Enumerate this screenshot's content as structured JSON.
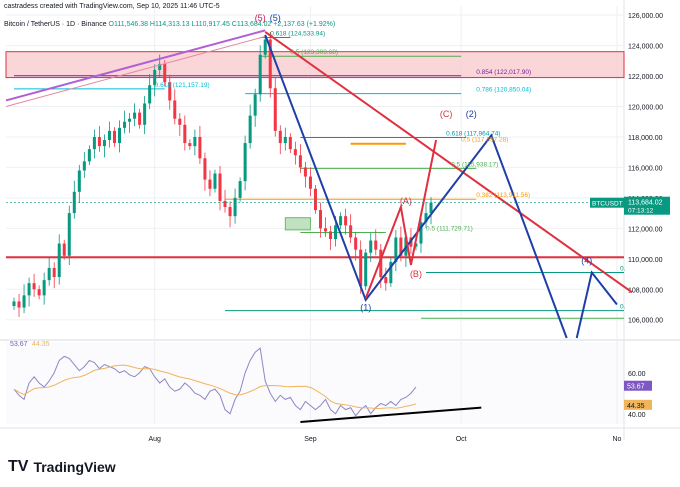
{
  "header": {
    "credit": "castradess created with TradingView.com, Sep 10, 2025 11:46 UTC-5",
    "symbol": "Bitcoin / TetherUS · 1D · Binance",
    "ohlc": "O111,546.38 H114,313.13 L110,917.45 C113,684.02 +2,137.63 (+1.92%)"
  },
  "brand": {
    "logo": "TV",
    "name": "TradingView"
  },
  "colors": {
    "up": "#089981",
    "down": "#f23645",
    "grid": "#eef0f3",
    "fib_purple": "#7b1fa2",
    "fib_teal": "#00bcd4",
    "fib_orange": "#ff9800",
    "fib_green": "#4caf50",
    "wave_blue": "#1e3fa8",
    "trend_red": "#e0303f",
    "zone_pink": "#f8c8cc",
    "wedge_violet": "#b15fd6",
    "rsi": "#8e86c6",
    "rsi_ma": "#f0b45a"
  },
  "chart_data": {
    "type": "candlestick",
    "timeframe": "1D",
    "ylim": [
      104800,
      126600
    ],
    "ticks": [
      "126,000.00",
      "124,000.00",
      "122,000.00",
      "120,000.00",
      "118,000.00",
      "116,000.00",
      "114,000.00",
      "112,000.00",
      "110,000.00",
      "108,000.00",
      "106,000.00"
    ],
    "x_labels": [
      {
        "label": "Aug",
        "day": 28
      },
      {
        "label": "Sep",
        "day": 59
      },
      {
        "label": "Oct",
        "day": 89
      },
      {
        "label": "No",
        "day": 120
      }
    ],
    "current_price": {
      "label": "BTCUSDT",
      "value": "113,684.02",
      "countdown": "07:13:12",
      "y": 113684
    },
    "closes": [
      107200,
      106800,
      107600,
      108400,
      108000,
      107600,
      108600,
      109400,
      108800,
      111000,
      110200,
      113000,
      114400,
      115800,
      116400,
      117200,
      118000,
      117400,
      117800,
      118400,
      117600,
      118600,
      119000,
      119200,
      119600,
      118800,
      120200,
      121400,
      122400,
      122800,
      121600,
      120400,
      119200,
      118800,
      117600,
      117400,
      118000,
      116600,
      115200,
      114600,
      115600,
      113800,
      113400,
      112800,
      114000,
      115100,
      117600,
      119400,
      120800,
      123400,
      124400,
      121200,
      118400,
      117600,
      118000,
      117200,
      116800,
      116000,
      115400,
      114600,
      113200,
      112000,
      111800,
      111300,
      112200,
      112800,
      112200,
      111400,
      110600,
      108200,
      110400,
      111200,
      110600,
      108800,
      108400,
      109800,
      111400,
      110200,
      111400,
      110800,
      111000,
      112400,
      113000,
      113684
    ],
    "price_labels": [
      {
        "text": "0.618 (124,533.94)",
        "y": 124533,
        "color": "#089981"
      },
      {
        "text": "0.5 (123,303.68)",
        "y": 123303,
        "color": "#4caf50"
      },
      {
        "text": "0.854 (122,017.90)",
        "y": 122017,
        "color": "#7b1fa2"
      },
      {
        "text": "0.618 (121,157.19)",
        "y": 121157,
        "color": "#00bcd4"
      },
      {
        "text": "0.786 (120,850.04)",
        "y": 120850,
        "color": "#00bcd4"
      },
      {
        "text": "0.618 (117,964.74)",
        "y": 117964,
        "color": "#0097a7"
      },
      {
        "text": "0.5 (117,557.28)",
        "y": 117557,
        "color": "#ff9800"
      },
      {
        "text": "0.5 (115,938.17)",
        "y": 115938,
        "color": "#4caf50"
      },
      {
        "text": "0.382 (113,911.56)",
        "y": 113911,
        "color": "#ff9800"
      },
      {
        "text": "0.5 (111,729.71)",
        "y": 111729,
        "color": "#4caf50"
      },
      {
        "text": "0.",
        "y": 109100,
        "color": "#089981"
      },
      {
        "text": "0.",
        "y": 106600,
        "color": "#089981"
      }
    ],
    "wave_labels": [
      {
        "text": "(5)",
        "y": 125600,
        "color": "#c2185b"
      },
      {
        "text": "(5)",
        "y": 125600,
        "color": "#1e3fa8"
      },
      {
        "text": "(A)",
        "y": 113600,
        "color": "#e0303f"
      },
      {
        "text": "(B)",
        "y": 108800,
        "color": "#e0303f"
      },
      {
        "text": "(C)",
        "y": 119300,
        "color": "#e0303f"
      },
      {
        "text": "(2)",
        "y": 119300,
        "color": "#1e3fa8"
      },
      {
        "text": "(1)",
        "y": 106600,
        "color": "#1e3fa8"
      },
      {
        "text": "(4)",
        "y": 109700,
        "color": "#1e3fa8"
      }
    ],
    "rsi": {
      "ylim": [
        35,
        75
      ],
      "ticks": [
        "60.00",
        "40.00"
      ],
      "value_label": "53.67",
      "ma_label": "44.35",
      "value_label_color": "#7e57c2",
      "ma_label_color": "#f0b45a",
      "top_left_value": "53.67",
      "top_left_ma": "44.35",
      "values": [
        52,
        49,
        47,
        55,
        58,
        55,
        53,
        56,
        60,
        66,
        68,
        67,
        64,
        61,
        63,
        66,
        65,
        62,
        64,
        63,
        62,
        60,
        61,
        59,
        58,
        60,
        63,
        62,
        58,
        55,
        57,
        53,
        51,
        52,
        55,
        53,
        50,
        49,
        47,
        51,
        52,
        49,
        42,
        40,
        47,
        51,
        60,
        66,
        70,
        72,
        56,
        50,
        46,
        49,
        47,
        48,
        44,
        42,
        46,
        44,
        42,
        44,
        47,
        42,
        40,
        44,
        42,
        43,
        39,
        42,
        44,
        40,
        43,
        45,
        44,
        46,
        44,
        47,
        48,
        50,
        53
      ]
    },
    "annotations": {
      "fib_levels": [
        {
          "y": 124533,
          "color": "#089981"
        },
        {
          "y": 123303,
          "color": "#4caf50"
        },
        {
          "y": 122017,
          "color": "#7b1fa2"
        },
        {
          "y": 121157,
          "color": "#00bcd4"
        },
        {
          "y": 120850,
          "color": "#00bcd4"
        },
        {
          "y": 117964,
          "color": "#0097a7"
        },
        {
          "y": 117557,
          "color": "#ff9800"
        },
        {
          "y": 115938,
          "color": "#4caf50"
        },
        {
          "y": 113911,
          "color": "#ff9800"
        },
        {
          "y": 111729,
          "color": "#4caf50"
        },
        {
          "y": 109100,
          "color": "#089981"
        },
        {
          "y": 106600,
          "color": "#089981"
        },
        {
          "y": 106100,
          "color": "#4caf50"
        }
      ],
      "support_line": 110100,
      "red_zone": [
        121900,
        123600
      ]
    }
  }
}
